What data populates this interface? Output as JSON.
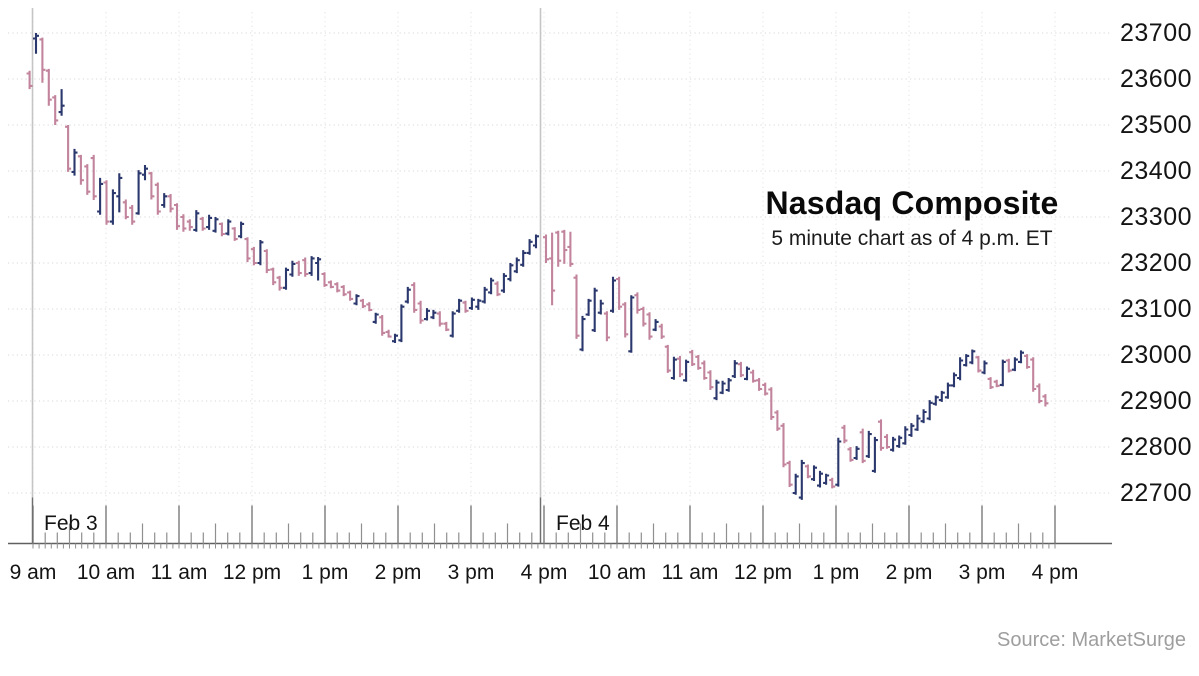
{
  "chart_data": {
    "type": "ohlc_bar",
    "title": "Nasdaq Composite",
    "subtitle": "5 minute chart as of 4 p.m. ET",
    "source_note": "Source: MarketSurge",
    "interval_minutes": 5,
    "y_axis": {
      "min": 22700,
      "max": 23700,
      "tick_step": 100,
      "grid": true,
      "tick_labels": [
        "23700",
        "23600",
        "23500",
        "23400",
        "23300",
        "23200",
        "23100",
        "23000",
        "22900",
        "22800",
        "22700"
      ]
    },
    "x_axis": {
      "sessions": [
        {
          "date": "Feb 3",
          "hour_labels": [
            "9 am",
            "10 am",
            "11 am",
            "12 pm",
            "1 pm",
            "2 pm",
            "3 pm",
            "4 pm"
          ]
        },
        {
          "date": "Feb 4",
          "hour_labels": [
            "10 am",
            "11 am",
            "12 pm",
            "1 pm",
            "2 pm",
            "3 pm",
            "4 pm"
          ]
        }
      ]
    },
    "colors": {
      "up_bar": "#2b386d",
      "down_bar": "#c2849c",
      "grid": "#d8d8d8",
      "session_line": "#c5c5c5",
      "axis": "#606060",
      "tick_major": "#6f6f6f",
      "tick_minor": "#8f8f8f",
      "text": "#141414",
      "source_text": "#9e9e9e"
    },
    "sessions": [
      {
        "date": "Feb 3",
        "bars_hlo_c_note": "high,low,open,close",
        "bars": [
          [
            23618,
            23578,
            23612,
            23585
          ],
          [
            23700,
            23655,
            23688,
            23694
          ],
          [
            23690,
            23592,
            23686,
            23620
          ],
          [
            23622,
            23542,
            23618,
            23555
          ],
          [
            23565,
            23500,
            23560,
            23510
          ],
          [
            23578,
            23520,
            23528,
            23542
          ],
          [
            23500,
            23398,
            23496,
            23405
          ],
          [
            23448,
            23390,
            23398,
            23440
          ],
          [
            23435,
            23370,
            23432,
            23380
          ],
          [
            23415,
            23348,
            23410,
            23355
          ],
          [
            23435,
            23337,
            23428,
            23345
          ],
          [
            23385,
            23305,
            23312,
            23372
          ],
          [
            23380,
            23283,
            23375,
            23290
          ],
          [
            23360,
            23283,
            23290,
            23352
          ],
          [
            23395,
            23310,
            23345,
            23385
          ],
          [
            23338,
            23295,
            23332,
            23300
          ],
          [
            23326,
            23283,
            23320,
            23290
          ],
          [
            23402,
            23305,
            23308,
            23395
          ],
          [
            23413,
            23380,
            23392,
            23405
          ],
          [
            23398,
            23338,
            23395,
            23345
          ],
          [
            23375,
            23305,
            23370,
            23312
          ],
          [
            23352,
            23320,
            23326,
            23345
          ],
          [
            23350,
            23310,
            23345,
            23318
          ],
          [
            23330,
            23272,
            23326,
            23280
          ],
          [
            23306,
            23268,
            23300,
            23275
          ],
          [
            23295,
            23270,
            23290,
            23278
          ],
          [
            23315,
            23268,
            23272,
            23308
          ],
          [
            23300,
            23270,
            23296,
            23275
          ],
          [
            23305,
            23272,
            23278,
            23298
          ],
          [
            23300,
            23266,
            23270,
            23295
          ],
          [
            23288,
            23258,
            23285,
            23263
          ],
          [
            23295,
            23260,
            23264,
            23290
          ],
          [
            23278,
            23248,
            23275,
            23252
          ],
          [
            23290,
            23254,
            23258,
            23285
          ],
          [
            23256,
            23202,
            23252,
            23210
          ],
          [
            23235,
            23195,
            23230,
            23200
          ],
          [
            23250,
            23195,
            23200,
            23245
          ],
          [
            23230,
            23178,
            23226,
            23185
          ],
          [
            23190,
            23152,
            23186,
            23158
          ],
          [
            23172,
            23140,
            23168,
            23146
          ],
          [
            23190,
            23142,
            23146,
            23185
          ],
          [
            23205,
            23170,
            23175,
            23198
          ],
          [
            23205,
            23172,
            23200,
            23178
          ],
          [
            23212,
            23170,
            23206,
            23176
          ],
          [
            23215,
            23172,
            23178,
            23210
          ],
          [
            23213,
            23162,
            23200,
            23208
          ],
          [
            23180,
            23148,
            23176,
            23152
          ],
          [
            23162,
            23145,
            23158,
            23148
          ],
          [
            23158,
            23136,
            23154,
            23140
          ],
          [
            23152,
            23128,
            23148,
            23132
          ],
          [
            23140,
            23118,
            23136,
            23122
          ],
          [
            23132,
            23108,
            23112,
            23128
          ],
          [
            23122,
            23102,
            23118,
            23106
          ],
          [
            23115,
            23095,
            23110,
            23098
          ],
          [
            23092,
            23068,
            23072,
            23088
          ],
          [
            23087,
            23042,
            23082,
            23048
          ],
          [
            23055,
            23038,
            23050,
            23040
          ],
          [
            23046,
            23026,
            23030,
            23042
          ],
          [
            23110,
            23028,
            23032,
            23105
          ],
          [
            23148,
            23112,
            23116,
            23142
          ],
          [
            23158,
            23092,
            23152,
            23098
          ],
          [
            23118,
            23068,
            23112,
            23075
          ],
          [
            23102,
            23075,
            23078,
            23096
          ],
          [
            23098,
            23078,
            23082,
            23092
          ],
          [
            23095,
            23062,
            23090,
            23068
          ],
          [
            23072,
            23052,
            23068,
            23055
          ],
          [
            23095,
            23038,
            23042,
            23090
          ],
          [
            23122,
            23092,
            23096,
            23118
          ],
          [
            23118,
            23092,
            23114,
            23096
          ],
          [
            23125,
            23098,
            23102,
            23120
          ],
          [
            23122,
            23098,
            23105,
            23118
          ],
          [
            23148,
            23112,
            23116,
            23142
          ],
          [
            23168,
            23132,
            23136,
            23162
          ],
          [
            23160,
            23128,
            23155,
            23132
          ],
          [
            23178,
            23135,
            23140,
            23172
          ],
          [
            23200,
            23160,
            23165,
            23195
          ],
          [
            23212,
            23178,
            23182,
            23206
          ],
          [
            23228,
            23192,
            23196,
            23222
          ],
          [
            23252,
            23218,
            23222,
            23246
          ],
          [
            23262,
            23232,
            23238,
            23258
          ]
        ]
      },
      {
        "date": "Feb 4",
        "bars": [
          [
            23262,
            23200,
            23256,
            23208
          ],
          [
            23266,
            23108,
            23210,
            23140
          ],
          [
            23270,
            23192,
            23266,
            23205
          ],
          [
            23272,
            23198,
            23268,
            23228
          ],
          [
            23268,
            23192,
            23235,
            23198
          ],
          [
            23175,
            23035,
            23168,
            23042
          ],
          [
            23085,
            23008,
            23012,
            23078
          ],
          [
            23122,
            23085,
            23088,
            23118
          ],
          [
            23146,
            23050,
            23054,
            23140
          ],
          [
            23120,
            23088,
            23092,
            23112
          ],
          [
            23095,
            23030,
            23090,
            23038
          ],
          [
            23170,
            23092,
            23096,
            23162
          ],
          [
            23170,
            23098,
            23165,
            23105
          ],
          [
            23115,
            23038,
            23110,
            23045
          ],
          [
            23130,
            23005,
            23008,
            23125
          ],
          [
            23136,
            23090,
            23130,
            23098
          ],
          [
            23105,
            23062,
            23100,
            23068
          ],
          [
            23093,
            23033,
            23088,
            23040
          ],
          [
            23078,
            23052,
            23055,
            23072
          ],
          [
            23068,
            23035,
            23062,
            23040
          ],
          [
            23022,
            22961,
            23018,
            22966
          ],
          [
            22996,
            22946,
            22950,
            22990
          ],
          [
            22998,
            22952,
            22992,
            22958
          ],
          [
            22990,
            22942,
            22945,
            22985
          ],
          [
            23011,
            22976,
            23006,
            22980
          ],
          [
            23000,
            22968,
            22996,
            22972
          ],
          [
            22988,
            22946,
            22982,
            22950
          ],
          [
            22967,
            22924,
            22962,
            22930
          ],
          [
            22946,
            22902,
            22906,
            22940
          ],
          [
            22944,
            22915,
            22918,
            22938
          ],
          [
            22950,
            22920,
            22924,
            22945
          ],
          [
            22989,
            22950,
            22954,
            22982
          ],
          [
            22985,
            22952,
            22980,
            22956
          ],
          [
            22975,
            22945,
            22948,
            22970
          ],
          [
            22968,
            22940,
            22962,
            22944
          ],
          [
            22950,
            22922,
            22945,
            22926
          ],
          [
            22940,
            22912,
            22935,
            22916
          ],
          [
            22930,
            22859,
            22925,
            22865
          ],
          [
            22880,
            22835,
            22875,
            22840
          ],
          [
            22852,
            22756,
            22846,
            22762
          ],
          [
            22770,
            22713,
            22765,
            22718
          ],
          [
            22742,
            22696,
            22700,
            22736
          ],
          [
            22772,
            22685,
            22690,
            22765
          ],
          [
            22762,
            22732,
            22758,
            22736
          ],
          [
            22760,
            22726,
            22730,
            22755
          ],
          [
            22748,
            22712,
            22716,
            22742
          ],
          [
            22742,
            22718,
            22722,
            22738
          ],
          [
            22733,
            22710,
            22728,
            22714
          ],
          [
            22820,
            22714,
            22718,
            22812
          ],
          [
            22848,
            22808,
            22842,
            22814
          ],
          [
            22800,
            22768,
            22795,
            22772
          ],
          [
            22802,
            22772,
            22776,
            22796
          ],
          [
            22840,
            22765,
            22832,
            22770
          ],
          [
            22835,
            22776,
            22780,
            22828
          ],
          [
            22822,
            22744,
            22748,
            22815
          ],
          [
            22860,
            22792,
            22855,
            22798
          ],
          [
            22828,
            22796,
            22822,
            22800
          ],
          [
            22822,
            22790,
            22794,
            22816
          ],
          [
            22825,
            22798,
            22802,
            22820
          ],
          [
            22845,
            22805,
            22808,
            22838
          ],
          [
            22852,
            22822,
            22826,
            22846
          ],
          [
            22870,
            22835,
            22838,
            22862
          ],
          [
            22882,
            22852,
            22856,
            22876
          ],
          [
            22902,
            22858,
            22862,
            22896
          ],
          [
            22912,
            22890,
            22894,
            22908
          ],
          [
            22922,
            22898,
            22902,
            22918
          ],
          [
            22940,
            22905,
            22908,
            22934
          ],
          [
            22962,
            22930,
            22934,
            22956
          ],
          [
            22995,
            22945,
            22950,
            22988
          ],
          [
            23002,
            22975,
            22978,
            22998
          ],
          [
            23012,
            22980,
            22984,
            23008
          ],
          [
            22998,
            22962,
            22995,
            22966
          ],
          [
            22988,
            22958,
            22962,
            22982
          ],
          [
            22952,
            22926,
            22948,
            22930
          ],
          [
            22946,
            22930,
            22942,
            22933
          ],
          [
            22990,
            22932,
            22935,
            22985
          ],
          [
            22992,
            22962,
            22988,
            22966
          ],
          [
            22995,
            22965,
            22968,
            22990
          ],
          [
            23010,
            22982,
            22985,
            23005
          ],
          [
            23002,
            22970,
            22998,
            22974
          ],
          [
            22995,
            22920,
            22990,
            22926
          ],
          [
            22938,
            22895,
            22932,
            22900
          ],
          [
            22915,
            22888,
            22910,
            22895
          ]
        ]
      }
    ]
  }
}
